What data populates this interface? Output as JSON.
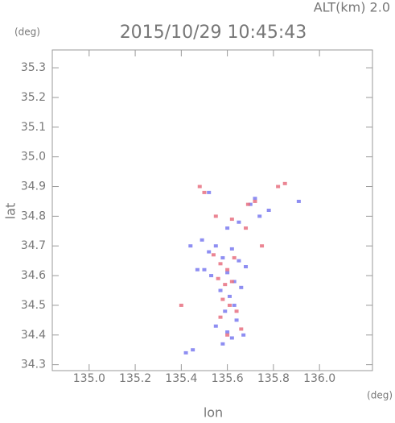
{
  "chart_data": {
    "type": "scatter",
    "top_label": "ALT(km)  2.0",
    "title": "2015/10/29 10:45:43",
    "y_unit": "(deg)",
    "x_unit": "(deg)",
    "xlabel": "lon",
    "ylabel": "lat",
    "xlim": [
      134.84,
      136.23
    ],
    "ylim": [
      34.28,
      35.36
    ],
    "xticks": [
      {
        "value": 135.0,
        "label": "135.0"
      },
      {
        "value": 135.2,
        "label": "135.2"
      },
      {
        "value": 135.4,
        "label": "135.4"
      },
      {
        "value": 135.6,
        "label": "135.6"
      },
      {
        "value": 135.8,
        "label": "135.8"
      },
      {
        "value": 136.0,
        "label": "136.0"
      }
    ],
    "yticks": [
      {
        "value": 34.3,
        "label": "34.3"
      },
      {
        "value": 34.4,
        "label": "34.4"
      },
      {
        "value": 34.5,
        "label": "34.5"
      },
      {
        "value": 34.6,
        "label": "34.6"
      },
      {
        "value": 34.7,
        "label": "34.7"
      },
      {
        "value": 34.8,
        "label": "34.8"
      },
      {
        "value": 34.9,
        "label": "34.9"
      },
      {
        "value": 35.0,
        "label": "35.0"
      },
      {
        "value": 35.1,
        "label": "35.1"
      },
      {
        "value": 35.2,
        "label": "35.2"
      },
      {
        "value": 35.3,
        "label": "35.3"
      }
    ],
    "series": [
      {
        "color": "#7a7af0",
        "x": [
          135.52,
          135.55,
          135.58,
          135.62,
          135.65,
          135.68,
          135.5,
          135.53,
          135.6,
          135.63,
          135.66,
          135.57,
          135.61,
          135.59,
          135.64,
          135.55,
          135.6,
          135.62,
          135.58,
          135.67,
          135.63,
          135.7,
          135.72,
          135.74,
          135.78,
          135.52,
          135.47,
          135.44,
          135.49,
          135.91,
          135.6,
          135.65,
          135.42,
          135.45
        ],
        "values": [
          34.68,
          34.7,
          34.66,
          34.69,
          34.65,
          34.63,
          34.62,
          34.6,
          34.61,
          34.58,
          34.56,
          34.55,
          34.53,
          34.48,
          34.45,
          34.43,
          34.41,
          34.39,
          34.37,
          34.4,
          34.5,
          34.84,
          34.86,
          34.8,
          34.82,
          34.88,
          34.62,
          34.7,
          34.72,
          34.85,
          34.76,
          34.78,
          34.34,
          34.35
        ]
      },
      {
        "color": "#e87080",
        "x": [
          135.54,
          135.57,
          135.6,
          135.63,
          135.56,
          135.59,
          135.62,
          135.58,
          135.61,
          135.64,
          135.57,
          135.6,
          135.66,
          135.69,
          135.72,
          135.5,
          135.48,
          135.82,
          135.85,
          135.55,
          135.62,
          135.68,
          135.4,
          135.75
        ],
        "values": [
          34.67,
          34.64,
          34.62,
          34.66,
          34.59,
          34.57,
          34.58,
          34.52,
          34.5,
          34.48,
          34.46,
          34.4,
          34.42,
          34.84,
          34.85,
          34.88,
          34.9,
          34.9,
          34.91,
          34.8,
          34.79,
          34.76,
          34.5,
          34.7
        ]
      }
    ]
  }
}
